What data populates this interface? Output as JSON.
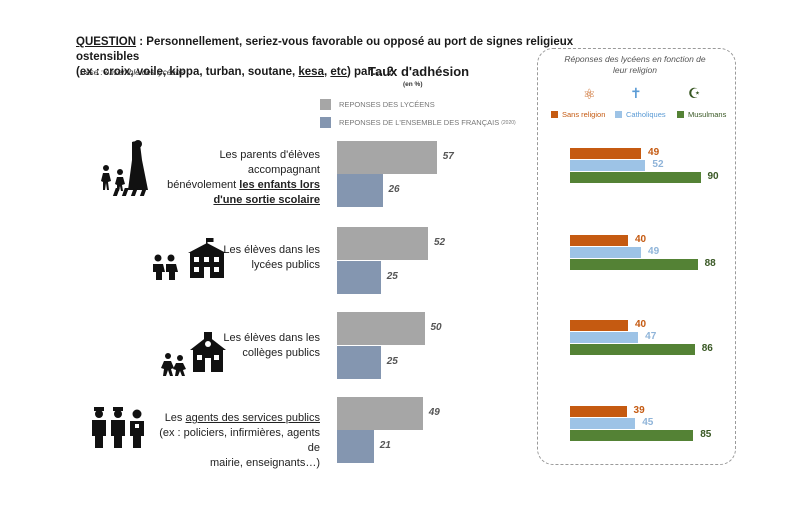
{
  "question": {
    "label": "QUESTION",
    "line1_rest": " : Personnellement, seriez-vous favorable ou opposé au port de signes religieux ostensibles",
    "line2_a": "(ex : croix, voile, kippa, turban, soutane, ",
    "line2_kesa": "kesa",
    "line2_b": ", ",
    "line2_etc": "etc",
    "line2_c": ") par… ?"
  },
  "base": "Base : ensemble des lycéens",
  "chart_data": [
    {
      "type": "bar",
      "title": "Taux d'adhésion",
      "subtitle": "(en %)",
      "legend": [
        {
          "label": "REPONSES DES LYCÉENS",
          "color": "#a6a6a6"
        },
        {
          "label": "REPONSES DE L'ENSEMBLE DES FRANÇAIS",
          "sup": "(2020)",
          "color": "#8496b0"
        }
      ],
      "categories": [
        {
          "parts": [
            {
              "t": "Les parents d'élèves accompagnant",
              "u": false,
              "br": true
            },
            {
              "t": "bénévolement ",
              "u": false,
              "br": false
            },
            {
              "t": "les enfants lors",
              "u": true,
              "br": true
            },
            {
              "t": "d'une sortie scolaire",
              "u": true,
              "br": false
            }
          ]
        },
        {
          "parts": [
            {
              "t": "Les élèves dans les",
              "u": false,
              "br": true
            },
            {
              "t": "lycées publics",
              "u": false,
              "br": false
            }
          ]
        },
        {
          "parts": [
            {
              "t": "Les élèves dans les",
              "u": false,
              "br": true
            },
            {
              "t": "collèges publics",
              "u": false,
              "br": false
            }
          ]
        },
        {
          "parts": [
            {
              "t": "Les ",
              "u": false,
              "br": false
            },
            {
              "t": "agents des services publics",
              "u": true,
              "br": true
            },
            {
              "t": "(ex : policiers, infirmières, agents de",
              "u": false,
              "br": true
            },
            {
              "t": "mairie, enseignants…)",
              "u": false,
              "br": false
            }
          ]
        }
      ],
      "series": [
        {
          "name": "REPONSES DES LYCÉENS",
          "values": [
            57,
            52,
            50,
            49
          ],
          "color": "#a6a6a6"
        },
        {
          "name": "REPONSES DE L'ENSEMBLE DES FRANÇAIS (2020)",
          "values": [
            26,
            25,
            25,
            21
          ],
          "color": "#8496b0"
        }
      ],
      "ylim": [
        0,
        100
      ]
    },
    {
      "type": "bar",
      "title": "Réponses des lycéens en fonction de leur religion",
      "legend": [
        {
          "label": "Sans religion",
          "color": "#c55a11",
          "icon": "⚛"
        },
        {
          "label": "Catholiques",
          "color": "#9dc3e6",
          "icon": "✝"
        },
        {
          "label": "Musulmans",
          "color": "#548235",
          "icon": "☪"
        }
      ],
      "series": [
        {
          "name": "Sans religion",
          "values": [
            49,
            40,
            40,
            39
          ],
          "color": "#c55a11"
        },
        {
          "name": "Catholiques",
          "values": [
            52,
            49,
            47,
            45
          ],
          "color": "#9dc3e6"
        },
        {
          "name": "Musulmans",
          "values": [
            90,
            88,
            86,
            85
          ],
          "color": "#548235"
        }
      ],
      "ylim": [
        0,
        100
      ]
    }
  ]
}
